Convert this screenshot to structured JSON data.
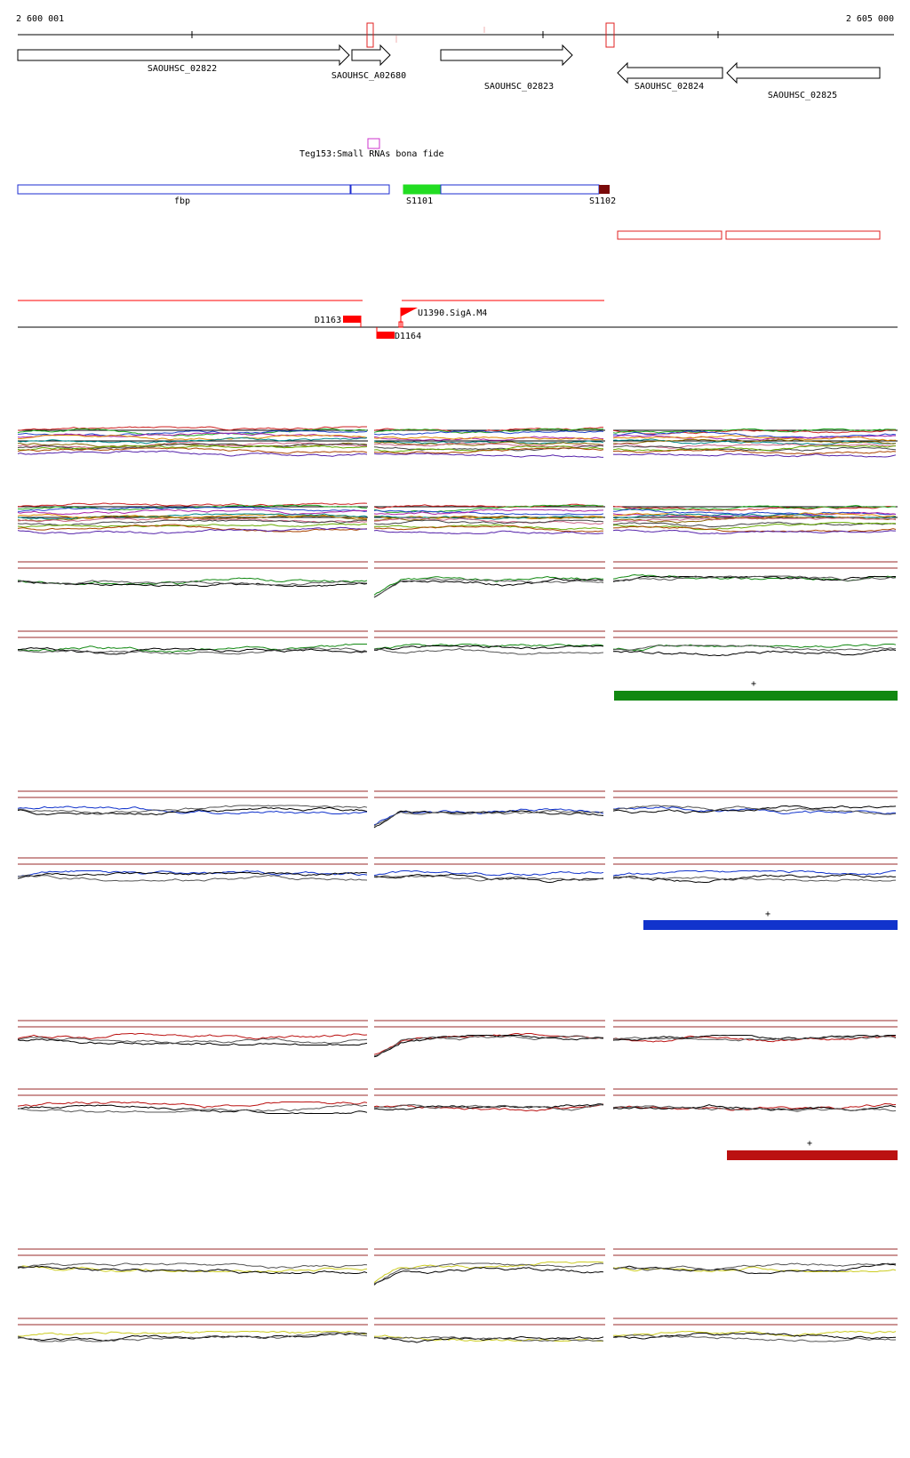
{
  "coords": {
    "start": "2 600 001",
    "end": "2 605 000"
  },
  "genes": [
    {
      "label": "SAOUHSC_02822",
      "dir": "+"
    },
    {
      "label": "SAOUHSC_A02680",
      "dir": "+"
    },
    {
      "label": "SAOUHSC_02823",
      "dir": "+"
    },
    {
      "label": "SAOUHSC_02824",
      "dir": "-"
    },
    {
      "label": "SAOUHSC_02825",
      "dir": "-"
    }
  ],
  "srna": {
    "label": "Teg153:Small RNAs bona fide"
  },
  "annotations": [
    {
      "label": "fbp"
    },
    {
      "label": "S1101"
    },
    {
      "label": "S1102"
    }
  ],
  "tss": [
    {
      "label": "U1390.SigA.M4"
    },
    {
      "label": "D1163"
    },
    {
      "label": "D1164"
    }
  ],
  "markers": [
    "+",
    "+",
    "+"
  ],
  "colors": {
    "gene_stroke": "#000000",
    "annot_blue": "#1b2bd0",
    "annot_green": "#22dd22",
    "annot_darkred": "#7a0a0a",
    "box_red": "#e02020",
    "srna_magenta": "#cc33cc",
    "tss_red": "#ff0000",
    "green": "#118811",
    "blue": "#1133cc",
    "red": "#bb1111",
    "yellow": "#cccc22",
    "ref_line": "#9a2a2a"
  }
}
